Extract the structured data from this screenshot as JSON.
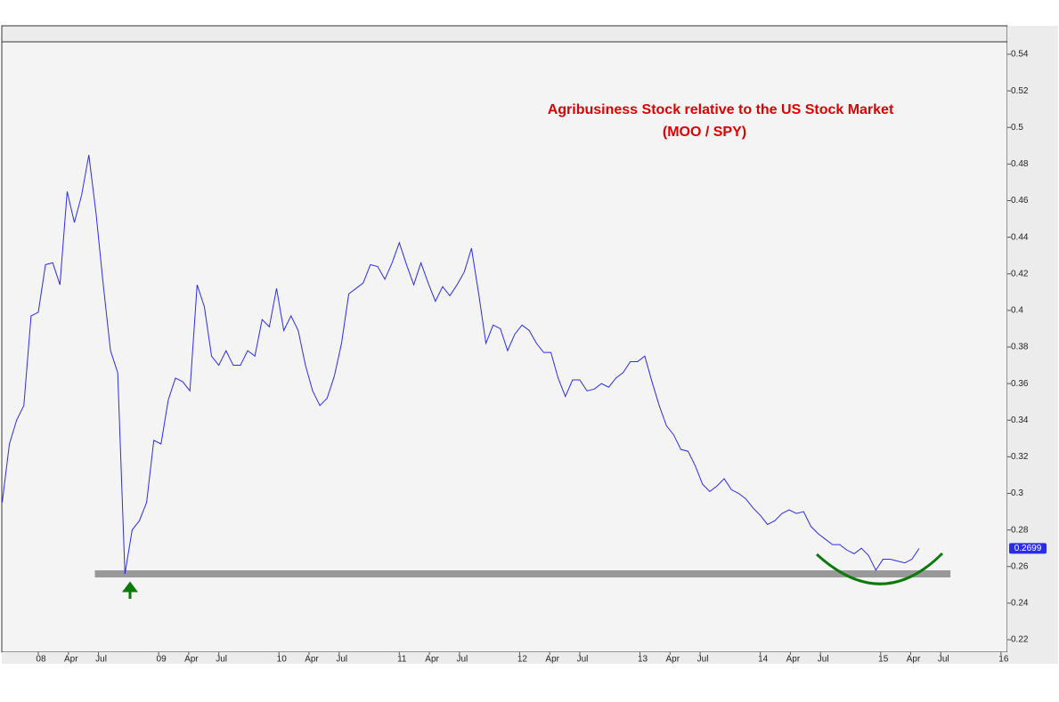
{
  "chart_data": {
    "type": "line",
    "title": "Agribusiness Stock relative to the US Stock Market",
    "subtitle": "(MOO / SPY)",
    "x": [
      2007.7,
      2007.76,
      2007.82,
      2007.88,
      2007.94,
      2008.0,
      2008.06,
      2008.12,
      2008.18,
      2008.24,
      2008.3,
      2008.36,
      2008.42,
      2008.48,
      2008.54,
      2008.6,
      2008.66,
      2008.72,
      2008.78,
      2008.84,
      2008.9,
      2008.96,
      2009.02,
      2009.08,
      2009.14,
      2009.2,
      2009.26,
      2009.32,
      2009.38,
      2009.44,
      2009.5,
      2009.56,
      2009.62,
      2009.68,
      2009.74,
      2009.8,
      2009.86,
      2009.92,
      2009.98,
      2010.04,
      2010.1,
      2010.16,
      2010.22,
      2010.28,
      2010.34,
      2010.4,
      2010.46,
      2010.52,
      2010.58,
      2010.64,
      2010.7,
      2010.76,
      2010.82,
      2010.88,
      2010.94,
      2011.0,
      2011.06,
      2011.12,
      2011.18,
      2011.24,
      2011.3,
      2011.36,
      2011.42,
      2011.48,
      2011.54,
      2011.6,
      2011.66,
      2011.72,
      2011.78,
      2011.84,
      2011.9,
      2011.96,
      2012.02,
      2012.08,
      2012.14,
      2012.2,
      2012.26,
      2012.32,
      2012.38,
      2012.44,
      2012.5,
      2012.56,
      2012.62,
      2012.68,
      2012.74,
      2012.8,
      2012.86,
      2012.92,
      2012.98,
      2013.04,
      2013.1,
      2013.16,
      2013.22,
      2013.28,
      2013.34,
      2013.4,
      2013.46,
      2013.52,
      2013.58,
      2013.64,
      2013.7,
      2013.76,
      2013.82,
      2013.88,
      2013.94,
      2014.0,
      2014.06,
      2014.12,
      2014.18,
      2014.24,
      2014.3,
      2014.36,
      2014.42,
      2014.48,
      2014.54,
      2014.6,
      2014.66,
      2014.72,
      2014.78,
      2014.84,
      2014.9,
      2014.96,
      2015.02,
      2015.08,
      2015.14,
      2015.2,
      2015.26,
      2015.32
    ],
    "series": [
      {
        "name": "MOO / SPY",
        "color": "#2b2bf0",
        "values": [
          0.295,
          0.327,
          0.34,
          0.348,
          0.397,
          0.399,
          0.425,
          0.426,
          0.414,
          0.465,
          0.448,
          0.463,
          0.485,
          0.453,
          0.414,
          0.378,
          0.366,
          0.256,
          0.28,
          0.285,
          0.295,
          0.329,
          0.327,
          0.351,
          0.363,
          0.361,
          0.356,
          0.414,
          0.402,
          0.375,
          0.37,
          0.378,
          0.37,
          0.37,
          0.378,
          0.375,
          0.395,
          0.391,
          0.412,
          0.389,
          0.397,
          0.389,
          0.37,
          0.356,
          0.348,
          0.352,
          0.364,
          0.382,
          0.409,
          0.412,
          0.415,
          0.425,
          0.424,
          0.417,
          0.426,
          0.437,
          0.425,
          0.414,
          0.426,
          0.415,
          0.405,
          0.413,
          0.408,
          0.414,
          0.421,
          0.434,
          0.409,
          0.382,
          0.392,
          0.39,
          0.378,
          0.387,
          0.392,
          0.389,
          0.382,
          0.377,
          0.377,
          0.363,
          0.353,
          0.362,
          0.362,
          0.356,
          0.357,
          0.36,
          0.358,
          0.363,
          0.366,
          0.372,
          0.372,
          0.375,
          0.361,
          0.348,
          0.337,
          0.332,
          0.324,
          0.323,
          0.315,
          0.305,
          0.301,
          0.304,
          0.308,
          0.302,
          0.3,
          0.297,
          0.292,
          0.288,
          0.283,
          0.285,
          0.289,
          0.291,
          0.289,
          0.29,
          0.282,
          0.278,
          0.275,
          0.272,
          0.272,
          0.269,
          0.267,
          0.27,
          0.266,
          0.258,
          0.264,
          0.264,
          0.263,
          0.262,
          0.264,
          0.2699
        ]
      }
    ],
    "support_level": {
      "value": 0.256,
      "x": [
        2008.47,
        2015.58
      ],
      "color": "#999999"
    },
    "xlim": [
      2007.704,
      2016.053
    ],
    "xticks": [
      {
        "value": 2008,
        "label": "08"
      },
      {
        "value": 2008.25,
        "label": "Apr"
      },
      {
        "value": 2008.5,
        "label": "Jul"
      },
      {
        "value": 2009,
        "label": "09"
      },
      {
        "value": 2009.25,
        "label": "Apr"
      },
      {
        "value": 2009.5,
        "label": "Jul"
      },
      {
        "value": 2010,
        "label": "10"
      },
      {
        "value": 2010.25,
        "label": "Apr"
      },
      {
        "value": 2010.5,
        "label": "Jul"
      },
      {
        "value": 2011,
        "label": "11"
      },
      {
        "value": 2011.25,
        "label": "Apr"
      },
      {
        "value": 2011.5,
        "label": "Jul"
      },
      {
        "value": 2012,
        "label": "12"
      },
      {
        "value": 2012.25,
        "label": "Apr"
      },
      {
        "value": 2012.5,
        "label": "Jul"
      },
      {
        "value": 2013,
        "label": "13"
      },
      {
        "value": 2013.25,
        "label": "Apr"
      },
      {
        "value": 2013.5,
        "label": "Jul"
      },
      {
        "value": 2014,
        "label": "14"
      },
      {
        "value": 2014.25,
        "label": "Apr"
      },
      {
        "value": 2014.5,
        "label": "Jul"
      },
      {
        "value": 2015,
        "label": "15"
      },
      {
        "value": 2015.25,
        "label": "Apr"
      },
      {
        "value": 2015.5,
        "label": "Jul"
      },
      {
        "value": 2016,
        "label": "16"
      }
    ],
    "ylim": [
      0.2132,
      0.5468
    ],
    "yticks": [
      0.22,
      0.24,
      0.26,
      0.28,
      0.3,
      0.32,
      0.34,
      0.36,
      0.38,
      0.4,
      0.42,
      0.44,
      0.46,
      0.48,
      0.5,
      0.52,
      0.54
    ],
    "grid": false
  }
}
